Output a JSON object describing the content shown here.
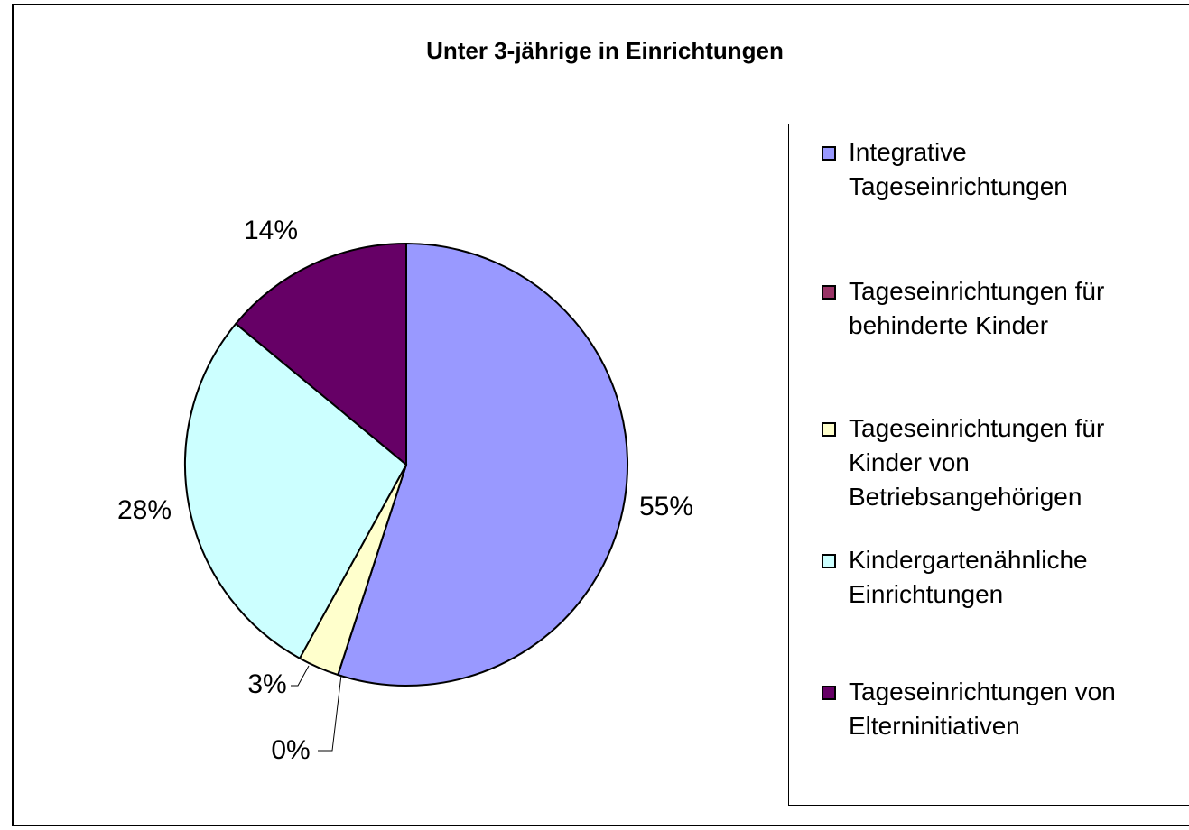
{
  "chart_data": {
    "type": "pie",
    "title": "Unter 3-jährige in Einrichtungen",
    "categories": [
      "Integrative Tageseinrichtungen",
      "Tageseinrichtungen für behinderte Kinder",
      "Tageseinrichtungen für Kinder von Betriebsangehörigen",
      "Kindergartenähnliche Einrichtungen",
      "Tageseinrichtungen von Elterninitiativen"
    ],
    "values": [
      55,
      0,
      3,
      28,
      14
    ],
    "value_labels": [
      "55%",
      "0%",
      "3%",
      "28%",
      "14%"
    ],
    "colors": [
      "#9999ff",
      "#993366",
      "#ffffcc",
      "#ccffff",
      "#660066"
    ],
    "legend": "right"
  }
}
